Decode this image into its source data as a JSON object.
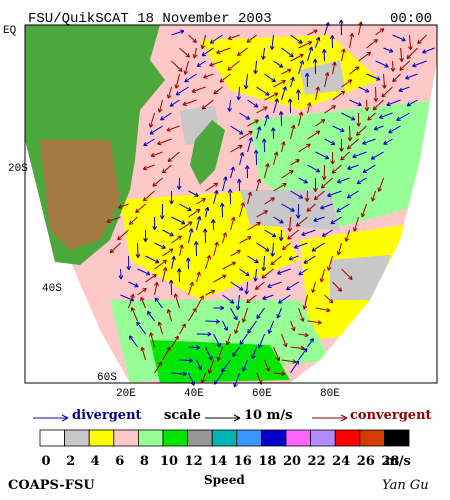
{
  "header": {
    "title": "FSU/QuikSCAT 18 November 2003",
    "time": "00:00"
  },
  "map": {
    "lat_labels": [
      "EQ",
      "20S",
      "40S",
      "60S"
    ],
    "lon_labels": [
      "20E",
      "40E",
      "60E",
      "80E"
    ]
  },
  "legend": {
    "divergent": "divergent",
    "scale": "scale",
    "scale_value": "10 m/s",
    "convergent": "convergent"
  },
  "colorbar": {
    "ticks": [
      0,
      2,
      4,
      6,
      8,
      10,
      12,
      14,
      16,
      18,
      20,
      22,
      24,
      26,
      28
    ],
    "unit": "m/s",
    "title": "Speed",
    "colors": [
      "#ffffff",
      "#c8c8c8",
      "#ffff00",
      "#ffc8c8",
      "#96ff96",
      "#00e600",
      "#969696",
      "#00b4b4",
      "#3c96ff",
      "#0000c8",
      "#ff64ff",
      "#b48cff",
      "#ff0000",
      "#d23c00",
      "#000000"
    ]
  },
  "footer": {
    "left": "COAPS-FSU",
    "right": "Yan Gu"
  }
}
